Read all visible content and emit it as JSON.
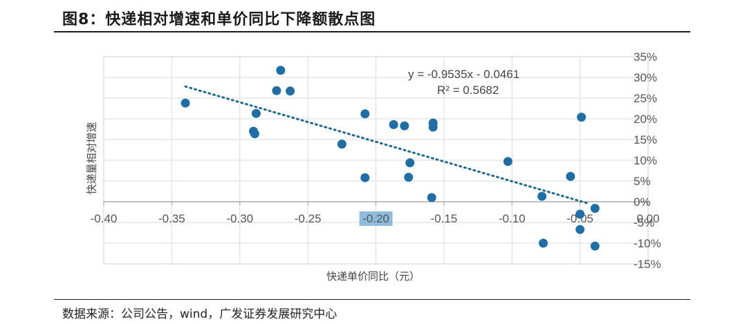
{
  "figure": {
    "title": "图8：快递相对增速和单价同比下降额散点图",
    "source": "数据来源：公司公告，wind，广发证券发展研究中心"
  },
  "chart_data": {
    "type": "scatter",
    "xlabel": "快递单价同比（元）",
    "ylabel": "快递量相对增速",
    "xlim": [
      -0.4,
      0.0
    ],
    "ylim": [
      -0.15,
      0.35
    ],
    "x_ticks": [
      "-0.40",
      "-0.35",
      "-0.30",
      "-0.25",
      "-0.20",
      "-0.15",
      "-0.10",
      "-0.05",
      "0.00"
    ],
    "x_tick_values": [
      -0.4,
      -0.35,
      -0.3,
      -0.25,
      -0.2,
      -0.15,
      -0.1,
      -0.05,
      0.0
    ],
    "y_ticks": [
      "35%",
      "30%",
      "25%",
      "20%",
      "15%",
      "10%",
      "5%",
      "0%",
      "-5%",
      "-10%",
      "-15%"
    ],
    "y_tick_values": [
      0.35,
      0.3,
      0.25,
      0.2,
      0.15,
      0.1,
      0.05,
      0.0,
      -0.05,
      -0.1,
      -0.15
    ],
    "highlighted_x_tick": "-0.20",
    "grid": true,
    "marker_color": "#1f6ea5",
    "trendline_color": "#1f6a8a",
    "highlight_color": "#8fbcdc",
    "trendline": {
      "equation": "y = -0.9535x - 0.0461",
      "r_squared": "R² = 0.5682",
      "slope": -0.9535,
      "intercept": -0.0461,
      "x_range": [
        -0.34,
        -0.045
      ]
    },
    "points": [
      {
        "x": -0.34,
        "y": 0.238
      },
      {
        "x": -0.27,
        "y": 0.317
      },
      {
        "x": -0.273,
        "y": 0.268
      },
      {
        "x": -0.263,
        "y": 0.267
      },
      {
        "x": -0.288,
        "y": 0.213
      },
      {
        "x": -0.29,
        "y": 0.17
      },
      {
        "x": -0.289,
        "y": 0.164
      },
      {
        "x": -0.225,
        "y": 0.139
      },
      {
        "x": -0.208,
        "y": 0.212
      },
      {
        "x": -0.208,
        "y": 0.058
      },
      {
        "x": -0.187,
        "y": 0.186
      },
      {
        "x": -0.179,
        "y": 0.183
      },
      {
        "x": -0.158,
        "y": 0.19
      },
      {
        "x": -0.158,
        "y": 0.18
      },
      {
        "x": -0.175,
        "y": 0.094
      },
      {
        "x": -0.176,
        "y": 0.059
      },
      {
        "x": -0.159,
        "y": 0.01
      },
      {
        "x": -0.103,
        "y": 0.097
      },
      {
        "x": -0.078,
        "y": 0.013
      },
      {
        "x": -0.077,
        "y": -0.1
      },
      {
        "x": -0.057,
        "y": 0.061
      },
      {
        "x": -0.049,
        "y": 0.204
      },
      {
        "x": -0.05,
        "y": -0.03
      },
      {
        "x": -0.05,
        "y": -0.067
      },
      {
        "x": -0.039,
        "y": -0.016
      },
      {
        "x": -0.039,
        "y": -0.107
      }
    ]
  }
}
